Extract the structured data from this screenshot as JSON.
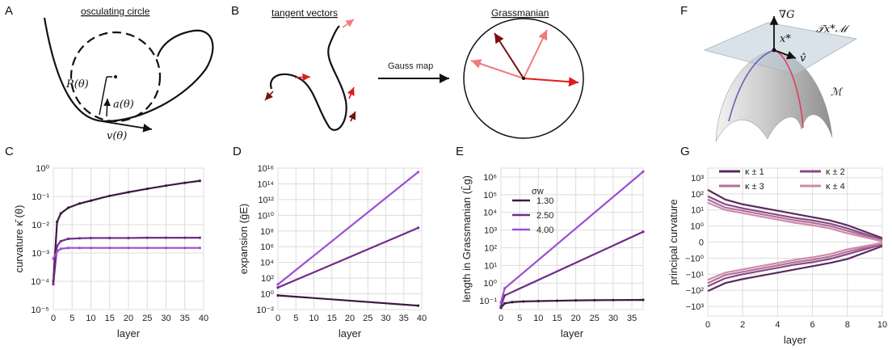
{
  "panel_labels": [
    "A",
    "B",
    "C",
    "D",
    "E",
    "F",
    "G"
  ],
  "schematics": {
    "a_title": "osculating circle",
    "a_radius": "R(θ)",
    "a_accel": "a(θ)",
    "a_vel": "v(θ)",
    "b_tangent_title": "tangent vectors",
    "b_grass_title": "Grassmanian",
    "b_gauss": "Gauss map",
    "f_grad": "∇G",
    "f_xstar": "x*",
    "f_vhat": "v̂",
    "f_tangent": "𝒯x*ℳ",
    "f_manifold": "ℳ"
  },
  "colors": {
    "sigma_1_30": "#3a1a3f",
    "sigma_2_50": "#6e2c8a",
    "sigma_4_00": "#9b4fd0",
    "k1": "#5a2a5e",
    "k2": "#8a4a84",
    "k3": "#b0709e",
    "k4": "#d08aa8",
    "red_dark": "#7a1010",
    "red": "#e01c1c",
    "red_light": "#f07a7a",
    "grid": "#dcdcdc"
  },
  "chart_data": [
    {
      "type": "line",
      "panel": "C",
      "xlabel": "layer",
      "ylabel": "curvature  κ̄ (θ)",
      "xlim": [
        0,
        40
      ],
      "ylim_log10": [
        -5,
        0
      ],
      "xticks": [
        "0",
        "5",
        "10",
        "15",
        "20",
        "25",
        "30",
        "35",
        "40"
      ],
      "yticks": [
        "10⁰",
        "10⁻¹",
        "10⁻²",
        "10⁻³",
        "10⁻⁴",
        "10⁻⁵"
      ],
      "series": [
        {
          "x": [
            0,
            1,
            2,
            4,
            7,
            10,
            15,
            20,
            25,
            30,
            35,
            39
          ],
          "y_log10": [
            -4.0,
            -1.9,
            -1.6,
            -1.4,
            -1.25,
            -1.15,
            -0.98,
            -0.85,
            -0.73,
            -0.62,
            -0.52,
            -0.45
          ]
        },
        {
          "x": [
            0,
            1,
            2,
            4,
            7,
            10,
            15,
            20,
            25,
            30,
            35,
            39
          ],
          "y_log10": [
            -4.1,
            -2.75,
            -2.58,
            -2.5,
            -2.48,
            -2.47,
            -2.47,
            -2.47,
            -2.46,
            -2.46,
            -2.46,
            -2.46
          ]
        },
        {
          "x": [
            0,
            1,
            2,
            4,
            7,
            10,
            15,
            20,
            25,
            30,
            35,
            39
          ],
          "y_log10": [
            -3.2,
            -2.95,
            -2.85,
            -2.82,
            -2.82,
            -2.82,
            -2.82,
            -2.82,
            -2.82,
            -2.82,
            -2.82,
            -2.82
          ]
        }
      ]
    },
    {
      "type": "line",
      "panel": "D",
      "xlabel": "layer",
      "ylabel": "expansion (ḡE)",
      "xlim": [
        0,
        40
      ],
      "ylim_log10": [
        -2,
        16
      ],
      "xticks": [
        "0",
        "5",
        "10",
        "15",
        "20",
        "25",
        "30",
        "35",
        "40"
      ],
      "yticks": [
        "10¹⁶",
        "10¹⁴",
        "10¹²",
        "10¹⁰",
        "10⁸",
        "10⁶",
        "10⁴",
        "10²",
        "10⁰",
        "10⁻²"
      ],
      "series": [
        {
          "x": [
            0,
            39
          ],
          "y_log10": [
            -0.2,
            -1.5
          ]
        },
        {
          "x": [
            0,
            39
          ],
          "y_log10": [
            0.8,
            8.4
          ]
        },
        {
          "x": [
            0,
            39
          ],
          "y_log10": [
            1.2,
            15.5
          ]
        }
      ]
    },
    {
      "type": "line",
      "panel": "E",
      "xlabel": "layer",
      "ylabel": "length in Grassmanian (L̄g)",
      "xlim": [
        0,
        38
      ],
      "ylim_log10": [
        -1.5,
        6.5
      ],
      "xticks": [
        "0",
        "5",
        "10",
        "15",
        "20",
        "25",
        "30",
        "35"
      ],
      "yticks": [
        "10⁶",
        "10⁵",
        "10⁴",
        "10³",
        "10²",
        "10¹",
        "10⁰",
        "10⁻¹"
      ],
      "legend_title": "σw",
      "series": [
        {
          "name": "1.30",
          "x": [
            0,
            1,
            3,
            6,
            10,
            15,
            20,
            25,
            30,
            38
          ],
          "y_log10": [
            -1.4,
            -1.15,
            -1.08,
            -1.04,
            -1.02,
            -1.0,
            -0.98,
            -0.97,
            -0.96,
            -0.95
          ]
        },
        {
          "name": "2.50",
          "x": [
            0,
            1,
            38
          ],
          "y_log10": [
            -1.3,
            -0.7,
            2.9
          ]
        },
        {
          "name": "4.00",
          "x": [
            0,
            1,
            38
          ],
          "y_log10": [
            -1.1,
            -0.3,
            6.3
          ]
        }
      ]
    },
    {
      "type": "line",
      "panel": "G",
      "xlabel": "layer",
      "ylabel": "principal curvature",
      "xlim": [
        0,
        10
      ],
      "xticks": [
        "0",
        "2",
        "4",
        "6",
        "8",
        "10"
      ],
      "yticks": [
        "10³",
        "10²",
        "10¹",
        "10⁰",
        "0",
        "−10⁰",
        "−10¹",
        "−10²",
        "−10³"
      ],
      "symlog": true,
      "series": [
        {
          "name": "κ ± 1",
          "x": [
            0,
            1,
            2,
            3,
            4,
            5,
            6,
            7,
            8,
            10
          ],
          "y_pos": [
            2.2,
            1.6,
            1.3,
            1.1,
            0.9,
            0.7,
            0.5,
            0.3,
            0.0,
            -0.8
          ],
          "y_neg": [
            2.0,
            1.5,
            1.25,
            1.05,
            0.85,
            0.65,
            0.45,
            0.25,
            0.0,
            -0.8
          ]
        },
        {
          "name": "κ ± 2",
          "x": [
            0,
            1,
            2,
            3,
            4,
            5,
            6,
            7,
            8,
            10
          ],
          "y_pos": [
            1.8,
            1.3,
            1.05,
            0.85,
            0.65,
            0.45,
            0.3,
            0.1,
            -0.2,
            -0.9
          ],
          "y_neg": [
            1.7,
            1.2,
            0.95,
            0.75,
            0.55,
            0.35,
            0.2,
            0.0,
            -0.3,
            -0.9
          ]
        },
        {
          "name": "κ ± 3",
          "x": [
            0,
            1,
            2,
            3,
            4,
            5,
            6,
            7,
            8,
            10
          ],
          "y_pos": [
            1.6,
            1.1,
            0.9,
            0.7,
            0.5,
            0.3,
            0.15,
            -0.05,
            -0.35,
            -0.95
          ],
          "y_neg": [
            1.5,
            1.0,
            0.8,
            0.6,
            0.4,
            0.2,
            0.05,
            -0.15,
            -0.45,
            -0.95
          ]
        },
        {
          "name": "κ ± 4",
          "x": [
            0,
            1,
            2,
            3,
            4,
            5,
            6,
            7,
            8,
            10
          ],
          "y_pos": [
            1.4,
            0.95,
            0.75,
            0.55,
            0.35,
            0.15,
            0.0,
            -0.2,
            -0.5,
            -1.0
          ],
          "y_neg": [
            1.3,
            0.85,
            0.65,
            0.45,
            0.25,
            0.05,
            -0.1,
            -0.3,
            -0.6,
            -1.0
          ]
        }
      ]
    }
  ]
}
